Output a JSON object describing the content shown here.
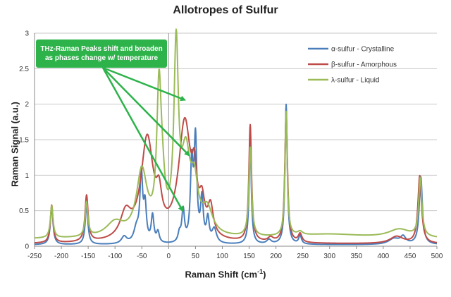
{
  "chart_data": {
    "type": "line",
    "title": "Allotropes of Sulfur",
    "xlabel": "Raman Shift (cm",
    "xlabel_sup": "-1",
    "xlabel_close": ")",
    "ylabel": "Raman Signal (a.u.)",
    "xlim": [
      -250,
      500
    ],
    "ylim": [
      0,
      3
    ],
    "xticks": [
      -250,
      -200,
      -150,
      -100,
      -50,
      0,
      50,
      100,
      150,
      200,
      250,
      300,
      350,
      400,
      450,
      500
    ],
    "yticks": [
      0,
      0.5,
      1,
      1.5,
      2,
      2.5,
      3
    ],
    "ytick_labels": [
      "0",
      "0.5",
      "1",
      "1.5",
      "2",
      "2.5",
      "3"
    ],
    "grid": true,
    "legend_position": "top-right",
    "annotation": "THz-Raman Peaks shift and broaden as phases change w/ temperature",
    "annotation_lines": [
      "THz-Raman Peaks shift and broaden",
      "as phases change w/ temperature"
    ],
    "series": [
      {
        "name": "α-sulfur - Crystalline",
        "color": "#4a7ebb",
        "baseline": 0.02,
        "peaks": [
          [
            -218,
            0.53,
            3
          ],
          [
            -153,
            0.55,
            3
          ],
          [
            -83,
            0.1,
            6
          ],
          [
            -60,
            0.2,
            6
          ],
          [
            -51,
            0.95,
            3
          ],
          [
            -44,
            0.5,
            3
          ],
          [
            -30,
            0.38,
            3
          ],
          [
            -20,
            0.15,
            3
          ],
          [
            20,
            0.12,
            3
          ],
          [
            27,
            0.45,
            3
          ],
          [
            43,
            1.08,
            3
          ],
          [
            50,
            1.42,
            3
          ],
          [
            62,
            0.6,
            3
          ],
          [
            73,
            0.33,
            3
          ],
          [
            85,
            0.2,
            5
          ],
          [
            152,
            1.4,
            2.5
          ],
          [
            187,
            0.06,
            5
          ],
          [
            219,
            1.97,
            2.5
          ],
          [
            245,
            0.12,
            3
          ],
          [
            420,
            0.08,
            12
          ],
          [
            437,
            0.1,
            6
          ],
          [
            470,
            0.95,
            3.5
          ]
        ]
      },
      {
        "name": "β-sulfur - Amorphous",
        "color": "#be4b48",
        "baseline": 0.03,
        "peaks": [
          [
            -218,
            0.53,
            3
          ],
          [
            -153,
            0.65,
            3.5
          ],
          [
            -80,
            0.35,
            12
          ],
          [
            -40,
            1.42,
            14
          ],
          [
            -18,
            0.4,
            6
          ],
          [
            30,
            1.65,
            14
          ],
          [
            48,
            0.6,
            5
          ],
          [
            62,
            0.4,
            6
          ],
          [
            78,
            0.4,
            6
          ],
          [
            152,
            1.64,
            3
          ],
          [
            190,
            0.06,
            6
          ],
          [
            219,
            1.82,
            3
          ],
          [
            245,
            0.12,
            4
          ],
          [
            425,
            0.1,
            15
          ],
          [
            468,
            0.95,
            4
          ]
        ]
      },
      {
        "name": "λ-sulfur - Liquid",
        "color": "#9bbb59",
        "baseline": 0.1,
        "peaks": [
          [
            -218,
            0.45,
            3
          ],
          [
            -153,
            0.48,
            3
          ],
          [
            -100,
            0.2,
            20
          ],
          [
            -50,
            0.9,
            12
          ],
          [
            -18,
            1.9,
            5
          ],
          [
            -12,
            0.5,
            6
          ],
          [
            14,
            2.55,
            5
          ],
          [
            32,
            1.05,
            10
          ],
          [
            48,
            0.6,
            8
          ],
          [
            72,
            0.35,
            12
          ],
          [
            152,
            1.25,
            3
          ],
          [
            219,
            1.75,
            2.5
          ],
          [
            245,
            0.05,
            6
          ],
          [
            300,
            0.06,
            80
          ],
          [
            430,
            0.12,
            25
          ],
          [
            469,
            0.82,
            3.5
          ]
        ]
      }
    ]
  }
}
